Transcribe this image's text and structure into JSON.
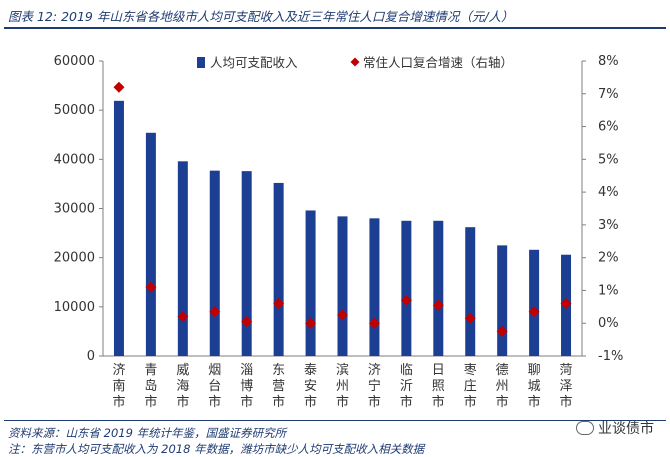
{
  "title": "图表 12: 2019 年山东省各地级市人均可支配收入及近三年常住人口复合增速情况（元/人）",
  "footer": {
    "source": "资料来源：山东省 2019 年统计年鉴，国盛证券研究所",
    "note": "注：东营市人均可支配收入为 2018 年数据，潍坊市缺少人均可支配收入相关数据"
  },
  "watermark": "业谈债市",
  "colors": {
    "bar": "#1c3f94",
    "marker": "#c00000",
    "text": "#1f3b73",
    "axis": "#7f7f7f"
  },
  "chart_data": {
    "type": "bar",
    "categories": [
      "济南市",
      "青岛市",
      "威海市",
      "烟台市",
      "淄博市",
      "东营市",
      "泰安市",
      "滨州市",
      "济宁市",
      "临沂市",
      "日照市",
      "枣庄市",
      "德州市",
      "聊城市",
      "菏泽市"
    ],
    "series": [
      {
        "name": "人均可支配收入",
        "type": "bar",
        "axis": "left",
        "values": [
          51900,
          45400,
          39600,
          37700,
          37600,
          35200,
          29600,
          28400,
          28000,
          27500,
          27500,
          26200,
          22500,
          21600,
          20600
        ]
      },
      {
        "name": "常住人口复合增速（右轴）",
        "type": "scatter",
        "axis": "right",
        "marker": "diamond",
        "values": [
          7.2,
          1.1,
          0.2,
          0.35,
          0.05,
          0.6,
          0.0,
          0.25,
          0.0,
          0.7,
          0.55,
          0.15,
          -0.25,
          0.35,
          0.6
        ]
      }
    ],
    "ylim_left": [
      0,
      60000
    ],
    "yticks_left": [
      0,
      10000,
      20000,
      30000,
      40000,
      50000,
      60000
    ],
    "ylim_right": [
      -1,
      8
    ],
    "yticks_right": [
      "-1%",
      "0%",
      "1%",
      "2%",
      "3%",
      "4%",
      "5%",
      "6%",
      "7%",
      "8%"
    ],
    "grid": false,
    "legend_position": "top"
  }
}
